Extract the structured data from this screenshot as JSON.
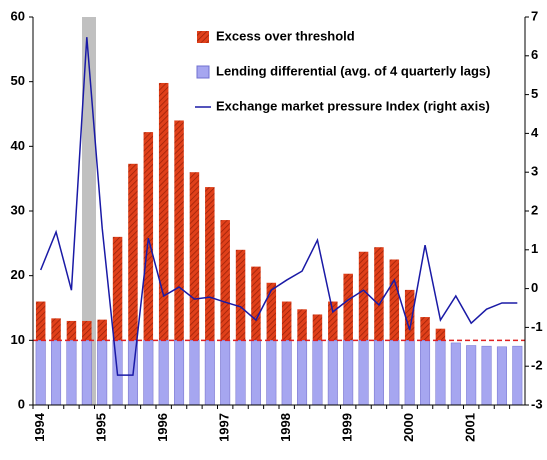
{
  "chart_data": {
    "type": "bar",
    "categories": [
      "1994",
      null,
      null,
      null,
      "1995",
      null,
      null,
      null,
      "1996",
      null,
      null,
      null,
      "1997",
      null,
      null,
      null,
      "1998",
      null,
      null,
      null,
      "1999",
      null,
      null,
      null,
      "2000",
      null,
      null,
      null,
      "2001",
      null,
      null,
      null
    ],
    "series": [
      {
        "name": "Excess over threshold",
        "type": "bar",
        "color": "#e0401a",
        "values": [
          16,
          13.4,
          13,
          13,
          13.2,
          26,
          37.3,
          42.2,
          49.8,
          44,
          36,
          33.7,
          28.6,
          24,
          21.4,
          18.9,
          16,
          14.8,
          14,
          16,
          20.3,
          23.7,
          24.4,
          22.5,
          17.8,
          13.6,
          11.8,
          null,
          null,
          null,
          null,
          null
        ]
      },
      {
        "name": "Lending differential (avg. of 4 quarterly lags)",
        "type": "bar",
        "color": "#a6a6f0",
        "values": [
          10,
          10,
          10,
          10,
          10,
          10,
          10,
          10,
          10,
          10,
          10,
          10,
          10,
          10,
          10,
          10,
          10,
          10,
          10,
          10,
          10,
          10,
          10,
          10,
          10,
          10,
          10,
          9.6,
          9.2,
          9.1,
          9,
          9.1
        ]
      },
      {
        "name": "Exchange market pressure Index (right axis)",
        "type": "line",
        "axis": "y2",
        "color": "#1a1aa6",
        "values": [
          0.48,
          1.46,
          -0.04,
          6.48,
          1.56,
          -2.23,
          -2.23,
          1.3,
          -0.19,
          0.04,
          -0.27,
          -0.22,
          -0.35,
          -0.47,
          -0.81,
          -0.04,
          0.22,
          0.45,
          1.25,
          -0.6,
          -0.29,
          -0.04,
          -0.42,
          0.22,
          -1.07,
          1.12,
          -0.81,
          -0.19,
          -0.89,
          -0.53,
          -0.37,
          -0.37
        ]
      }
    ],
    "ylim": [
      0,
      60
    ],
    "yticks": [
      0,
      10,
      20,
      30,
      40,
      50,
      60
    ],
    "y2lim": [
      -3,
      7
    ],
    "y2ticks": [
      -3,
      -2,
      -1,
      0,
      1,
      2,
      3,
      4,
      5,
      6,
      7
    ],
    "threshold_line": 10,
    "threshold_color": "#e02020",
    "legend": "top"
  }
}
